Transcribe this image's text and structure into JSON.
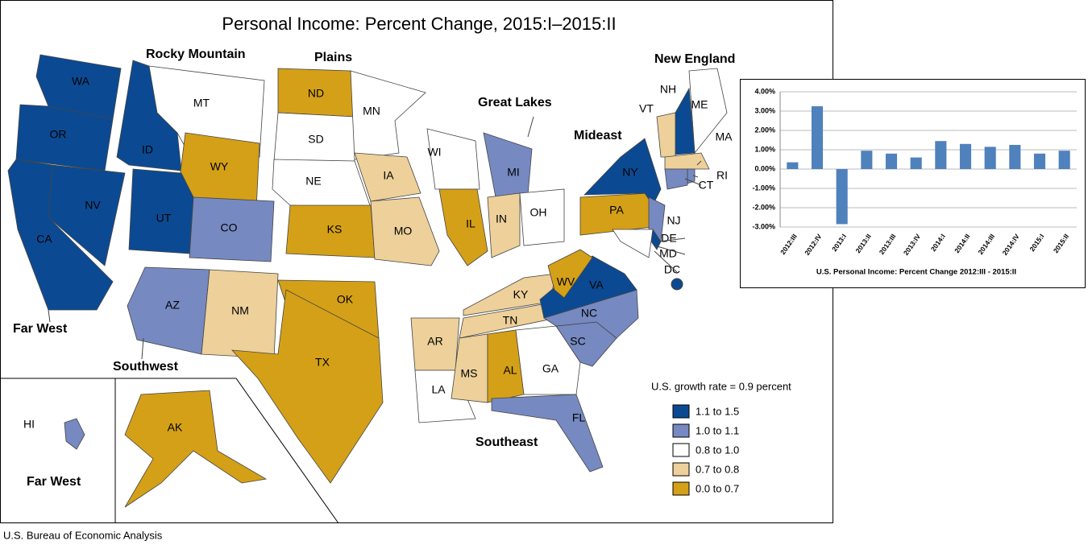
{
  "title": "Personal Income: Percent Change, 2015:I–2015:II",
  "source": "U.S. Bureau of Economic Analysis",
  "map": {
    "regions": [
      "Far West",
      "Rocky Mountain",
      "Plains",
      "Great Lakes",
      "New England",
      "Mideast",
      "Southwest",
      "Southeast",
      "Far West"
    ],
    "legend": {
      "title": "U.S. growth rate = 0.9 percent",
      "classes": [
        {
          "label": "1.1 to 1.5",
          "color": "#0b4a92"
        },
        {
          "label": "1.0 to 1.1",
          "color": "#7689c1"
        },
        {
          "label": "0.8 to 1.0",
          "color": "#ffffff"
        },
        {
          "label": "0.7 to 0.8",
          "color": "#edd09a"
        },
        {
          "label": "0.0 to 0.7",
          "color": "#d4a017"
        }
      ]
    },
    "states": [
      {
        "abbr": "WA",
        "class": 0
      },
      {
        "abbr": "OR",
        "class": 0
      },
      {
        "abbr": "CA",
        "class": 0
      },
      {
        "abbr": "NV",
        "class": 0
      },
      {
        "abbr": "ID",
        "class": 0
      },
      {
        "abbr": "MT",
        "class": 2
      },
      {
        "abbr": "WY",
        "class": 4
      },
      {
        "abbr": "UT",
        "class": 0
      },
      {
        "abbr": "CO",
        "class": 1
      },
      {
        "abbr": "AZ",
        "class": 1
      },
      {
        "abbr": "NM",
        "class": 3
      },
      {
        "abbr": "ND",
        "class": 4
      },
      {
        "abbr": "SD",
        "class": 2
      },
      {
        "abbr": "NE",
        "class": 2
      },
      {
        "abbr": "KS",
        "class": 4
      },
      {
        "abbr": "OK",
        "class": 4
      },
      {
        "abbr": "TX",
        "class": 4
      },
      {
        "abbr": "MN",
        "class": 2
      },
      {
        "abbr": "IA",
        "class": 3
      },
      {
        "abbr": "MO",
        "class": 3
      },
      {
        "abbr": "AR",
        "class": 3
      },
      {
        "abbr": "LA",
        "class": 2
      },
      {
        "abbr": "WI",
        "class": 2
      },
      {
        "abbr": "IL",
        "class": 4
      },
      {
        "abbr": "MI",
        "class": 1
      },
      {
        "abbr": "IN",
        "class": 3
      },
      {
        "abbr": "OH",
        "class": 2
      },
      {
        "abbr": "KY",
        "class": 3
      },
      {
        "abbr": "TN",
        "class": 3
      },
      {
        "abbr": "MS",
        "class": 3
      },
      {
        "abbr": "AL",
        "class": 4
      },
      {
        "abbr": "GA",
        "class": 2
      },
      {
        "abbr": "FL",
        "class": 1
      },
      {
        "abbr": "SC",
        "class": 1
      },
      {
        "abbr": "NC",
        "class": 1
      },
      {
        "abbr": "VA",
        "class": 0
      },
      {
        "abbr": "WV",
        "class": 4
      },
      {
        "abbr": "PA",
        "class": 4
      },
      {
        "abbr": "NY",
        "class": 0
      },
      {
        "abbr": "ME",
        "class": 2
      },
      {
        "abbr": "NH",
        "class": 0
      },
      {
        "abbr": "VT",
        "class": 3
      },
      {
        "abbr": "MA",
        "class": 3
      },
      {
        "abbr": "RI",
        "class": 1
      },
      {
        "abbr": "CT",
        "class": 1
      },
      {
        "abbr": "NJ",
        "class": 1
      },
      {
        "abbr": "DE",
        "class": 0
      },
      {
        "abbr": "MD",
        "class": 2
      },
      {
        "abbr": "DC",
        "class": 0
      },
      {
        "abbr": "HI",
        "class": 1
      },
      {
        "abbr": "AK",
        "class": 4
      }
    ]
  },
  "chart_data": {
    "type": "bar",
    "title": "U.S. Personal Income: Percent Change 2012:III - 2015:II",
    "categories": [
      "2012:III",
      "2012:IV",
      "2013:I",
      "2013:II",
      "2013:III",
      "2013:IV",
      "2014:I",
      "2014:II",
      "2014:III",
      "2014:IV",
      "2015:I",
      "2015:II"
    ],
    "values": [
      0.35,
      3.25,
      -2.85,
      0.95,
      0.8,
      0.6,
      1.45,
      1.3,
      1.15,
      1.25,
      0.8,
      0.95
    ],
    "color": "#4f81bd",
    "ylim": [
      -3,
      4
    ],
    "yticks": [
      {
        "value": -3,
        "label": "-3.00%"
      },
      {
        "value": -2,
        "label": "-2.00%"
      },
      {
        "value": -1,
        "label": "-1.00%"
      },
      {
        "value": 0,
        "label": "0.00%"
      },
      {
        "value": 1,
        "label": "1.00%"
      },
      {
        "value": 2,
        "label": "2.00%"
      },
      {
        "value": 3,
        "label": "3.00%"
      },
      {
        "value": 4,
        "label": "4.00%"
      }
    ],
    "grid": true
  }
}
